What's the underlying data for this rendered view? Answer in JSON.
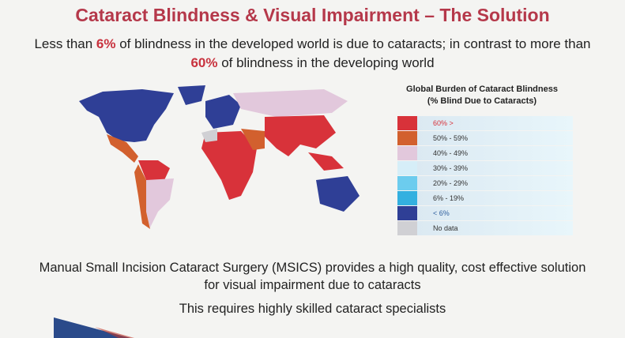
{
  "title": "Cataract Blindness & Visual Impairment – The Solution",
  "subtitle": {
    "part1": "Less than ",
    "pct1": "6%",
    "part2": " of blindness in the developed world is due to cataracts; in contrast to more than ",
    "pct2": "60%",
    "part3": " of blindness in the developing world"
  },
  "legend": {
    "title_line1": "Global Burden of Cataract Blindness",
    "title_line2": "(% Blind Due to Cataracts)",
    "items": [
      {
        "label": "60% >",
        "color": "#d8323a",
        "text_color": "#d8323a"
      },
      {
        "label": "50% - 59%",
        "color": "#d2602e",
        "text_color": "#333333"
      },
      {
        "label": "40% - 49%",
        "color": "#e2c8dc",
        "text_color": "#333333"
      },
      {
        "label": "30% - 39%",
        "color": "#d6eef8",
        "text_color": "#333333"
      },
      {
        "label": "20% - 29%",
        "color": "#6cccee",
        "text_color": "#333333"
      },
      {
        "label": "6% - 19%",
        "color": "#33b0e0",
        "text_color": "#333333"
      },
      {
        "label": "< 6%",
        "color": "#2f3f96",
        "text_color": "#2f5f9e"
      },
      {
        "label": "No data",
        "color": "#d0d0d4",
        "text_color": "#333333"
      }
    ]
  },
  "bottom_text": "Manual Small Incision Cataract Surgery (MSICS) provides a high quality, cost effective solution for visual impairment due to cataracts",
  "bottom_text2": "This requires highly skilled cataract specialists"
}
